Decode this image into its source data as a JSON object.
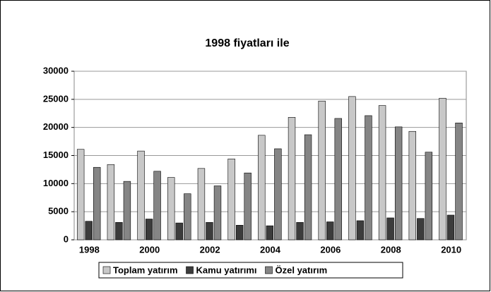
{
  "chart_data": {
    "type": "bar",
    "title": "1998 fiyatları ile",
    "categories": [
      "1998",
      null,
      "2000",
      null,
      "2002",
      null,
      "2004",
      null,
      "2006",
      null,
      "2008",
      null,
      "2010"
    ],
    "series": [
      {
        "name": "Toplam yatırım",
        "color": "#c8c8c8",
        "values": [
          16100,
          13400,
          15800,
          11100,
          12700,
          14400,
          18600,
          21800,
          24700,
          25500,
          23900,
          19300,
          25200
        ]
      },
      {
        "name": "Kamu yatırımı",
        "color": "#3c3c3c",
        "values": [
          3300,
          3100,
          3700,
          3000,
          3100,
          2600,
          2500,
          3100,
          3200,
          3400,
          3900,
          3800,
          4400
        ]
      },
      {
        "name": "Özel yatırım",
        "color": "#858585",
        "values": [
          12900,
          10400,
          12200,
          8200,
          9600,
          11900,
          16200,
          18700,
          21600,
          22100,
          20100,
          15600,
          20800
        ]
      }
    ],
    "ylim": [
      0,
      30000
    ],
    "yticks": [
      0,
      5000,
      10000,
      15000,
      20000,
      25000,
      30000
    ],
    "grid": true,
    "legend": "bottom"
  }
}
